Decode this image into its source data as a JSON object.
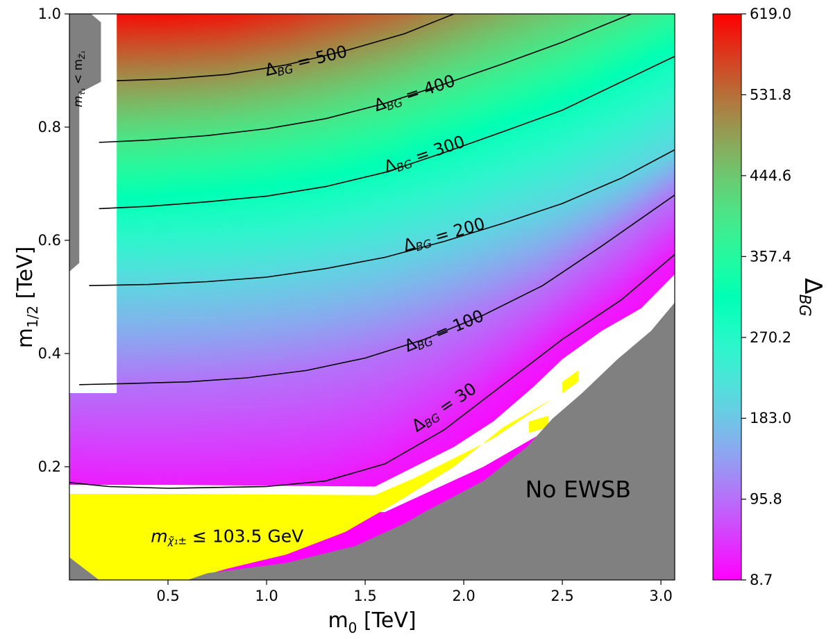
{
  "chart_data": {
    "type": "heatmap",
    "title": "",
    "xlabel": "m₀ [TeV]",
    "xlabel_main": "m",
    "xlabel_sub": "0",
    "xlabel_unit": " [TeV]",
    "ylabel": "m₁/₂ [TeV]",
    "ylabel_main": "m",
    "ylabel_sub": "1/2",
    "ylabel_unit": " [TeV]",
    "xlim": [
      0.0,
      3.07
    ],
    "ylim": [
      0.0,
      1.0
    ],
    "xticks": [
      0.5,
      1.0,
      1.5,
      2.0,
      2.5,
      3.0
    ],
    "xtick_labels": [
      "0.5",
      "1.0",
      "1.5",
      "2.0",
      "2.5",
      "3.0"
    ],
    "yticks": [
      0.2,
      0.4,
      0.6,
      0.8,
      1.0
    ],
    "ytick_labels": [
      "0.2",
      "0.4",
      "0.6",
      "0.8",
      "1.0"
    ],
    "colorbar": {
      "label_main": "Δ",
      "label_sub": "BG",
      "min": 8.7,
      "max": 619.0,
      "ticks": [
        8.7,
        95.8,
        183.0,
        270.2,
        357.4,
        444.6,
        531.8,
        619.0
      ],
      "tick_labels": [
        "8.7",
        "95.8",
        "183.0",
        "270.2",
        "357.4",
        "444.6",
        "531.8",
        "619.0"
      ],
      "colormap": "rainbow"
    },
    "contours": [
      {
        "level": 30,
        "label": "ΔBG = 30",
        "label_x": 1.9,
        "label_y": 0.305,
        "points": [
          [
            0.0,
            0.172
          ],
          [
            0.2,
            0.165
          ],
          [
            0.5,
            0.162
          ],
          [
            1.0,
            0.165
          ],
          [
            1.3,
            0.175
          ],
          [
            1.6,
            0.205
          ],
          [
            1.9,
            0.265
          ],
          [
            2.2,
            0.345
          ],
          [
            2.5,
            0.425
          ],
          [
            2.8,
            0.495
          ],
          [
            3.07,
            0.575
          ]
        ]
      },
      {
        "level": 100,
        "label": "ΔBG = 100",
        "label_x": 1.9,
        "label_y": 0.44,
        "points": [
          [
            0.05,
            0.345
          ],
          [
            0.3,
            0.347
          ],
          [
            0.6,
            0.35
          ],
          [
            0.9,
            0.357
          ],
          [
            1.2,
            0.37
          ],
          [
            1.5,
            0.392
          ],
          [
            1.8,
            0.425
          ],
          [
            2.1,
            0.468
          ],
          [
            2.4,
            0.52
          ],
          [
            2.7,
            0.59
          ],
          [
            3.07,
            0.68
          ]
        ]
      },
      {
        "level": 200,
        "label": "ΔBG = 200",
        "label_x": 1.9,
        "label_y": 0.61,
        "points": [
          [
            0.1,
            0.52
          ],
          [
            0.4,
            0.522
          ],
          [
            0.7,
            0.527
          ],
          [
            1.0,
            0.535
          ],
          [
            1.3,
            0.55
          ],
          [
            1.6,
            0.57
          ],
          [
            1.9,
            0.598
          ],
          [
            2.2,
            0.63
          ],
          [
            2.5,
            0.665
          ],
          [
            2.8,
            0.71
          ],
          [
            3.07,
            0.76
          ]
        ]
      },
      {
        "level": 300,
        "label": "ΔBG = 300",
        "label_x": 1.8,
        "label_y": 0.752,
        "points": [
          [
            0.15,
            0.656
          ],
          [
            0.4,
            0.66
          ],
          [
            0.7,
            0.668
          ],
          [
            1.0,
            0.678
          ],
          [
            1.3,
            0.695
          ],
          [
            1.6,
            0.72
          ],
          [
            1.9,
            0.755
          ],
          [
            2.2,
            0.792
          ],
          [
            2.5,
            0.83
          ],
          [
            2.8,
            0.88
          ],
          [
            3.07,
            0.925
          ]
        ]
      },
      {
        "level": 400,
        "label": "ΔBG = 400",
        "label_x": 1.75,
        "label_y": 0.86,
        "points": [
          [
            0.15,
            0.773
          ],
          [
            0.4,
            0.777
          ],
          [
            0.7,
            0.785
          ],
          [
            1.0,
            0.797
          ],
          [
            1.3,
            0.815
          ],
          [
            1.6,
            0.842
          ],
          [
            1.9,
            0.876
          ],
          [
            2.2,
            0.912
          ],
          [
            2.5,
            0.95
          ],
          [
            2.85,
            1.0
          ]
        ]
      },
      {
        "level": 500,
        "label": "ΔBG = 500",
        "label_x": 1.2,
        "label_y": 0.917,
        "points": [
          [
            0.24,
            0.882
          ],
          [
            0.5,
            0.885
          ],
          [
            0.8,
            0.893
          ],
          [
            1.1,
            0.91
          ],
          [
            1.4,
            0.935
          ],
          [
            1.7,
            0.965
          ],
          [
            1.95,
            1.0
          ]
        ]
      }
    ],
    "regions": [
      {
        "name": "No EWSB",
        "color": "#808080",
        "label_x": 2.58,
        "label_y": 0.16
      },
      {
        "name": "chargino mass limit",
        "color": "#ffff00",
        "label": "mχ̃₁± ≤ 103.5 GeV",
        "label_main": "m",
        "label_sub": "χ̃₁±",
        "label_rest": " ≤ 103.5 GeV",
        "label_x": 0.8,
        "label_y": 0.078
      },
      {
        "name": "stau LSP",
        "color": "#808080",
        "label": "mτ̃₁ < mZ̃₁",
        "label_main": "m",
        "label_sub1": "τ̃₁",
        "label_mid": " < m",
        "label_sub2": "Z̃₁",
        "label_x": 0.045,
        "label_y": 0.935
      }
    ]
  }
}
